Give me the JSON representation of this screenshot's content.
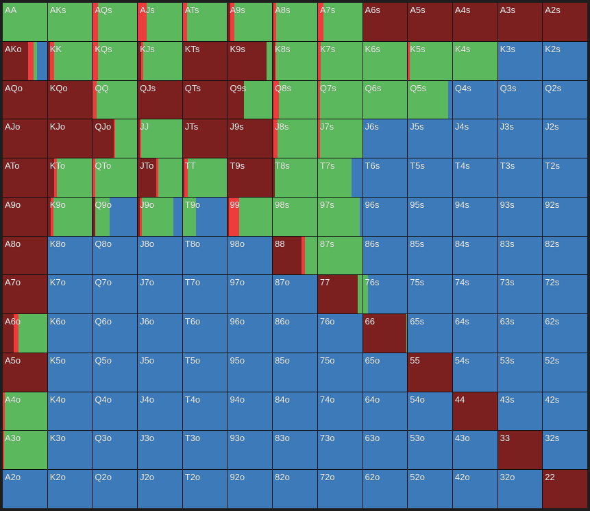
{
  "colors": {
    "raise": "#7b1f1f",
    "allin": "#ee3b3b",
    "call": "#5cb85c",
    "fold": "#3d7ab9"
  },
  "hands": [
    [
      "AA",
      "AKs",
      "AQs",
      "AJs",
      "ATs",
      "A9s",
      "A8s",
      "A7s",
      "A6s",
      "A5s",
      "A4s",
      "A3s",
      "A2s"
    ],
    [
      "AKo",
      "KK",
      "KQs",
      "KJs",
      "KTs",
      "K9s",
      "K8s",
      "K7s",
      "K6s",
      "K5s",
      "K4s",
      "K3s",
      "K2s"
    ],
    [
      "AQo",
      "KQo",
      "QQ",
      "QJs",
      "QTs",
      "Q9s",
      "Q8s",
      "Q7s",
      "Q6s",
      "Q5s",
      "Q4s",
      "Q3s",
      "Q2s"
    ],
    [
      "AJo",
      "KJo",
      "QJo",
      "JJ",
      "JTs",
      "J9s",
      "J8s",
      "J7s",
      "J6s",
      "J5s",
      "J4s",
      "J3s",
      "J2s"
    ],
    [
      "ATo",
      "KTo",
      "QTo",
      "JTo",
      "TT",
      "T9s",
      "T8s",
      "T7s",
      "T6s",
      "T5s",
      "T4s",
      "T3s",
      "T2s"
    ],
    [
      "A9o",
      "K9o",
      "Q9o",
      "J9o",
      "T9o",
      "99",
      "98s",
      "97s",
      "96s",
      "95s",
      "94s",
      "93s",
      "92s"
    ],
    [
      "A8o",
      "K8o",
      "Q8o",
      "J8o",
      "T8o",
      "98o",
      "88",
      "87s",
      "86s",
      "85s",
      "84s",
      "83s",
      "82s"
    ],
    [
      "A7o",
      "K7o",
      "Q7o",
      "J7o",
      "T7o",
      "97o",
      "87o",
      "77",
      "76s",
      "75s",
      "74s",
      "73s",
      "72s"
    ],
    [
      "A6o",
      "K6o",
      "Q6o",
      "J6o",
      "T6o",
      "96o",
      "86o",
      "76o",
      "66",
      "65s",
      "64s",
      "63s",
      "62s"
    ],
    [
      "A5o",
      "K5o",
      "Q5o",
      "J5o",
      "T5o",
      "95o",
      "85o",
      "75o",
      "65o",
      "55",
      "54s",
      "53s",
      "52s"
    ],
    [
      "A4o",
      "K4o",
      "Q4o",
      "J4o",
      "T4o",
      "94o",
      "84o",
      "74o",
      "64o",
      "54o",
      "44",
      "43s",
      "42s"
    ],
    [
      "A3o",
      "K3o",
      "Q3o",
      "J3o",
      "T3o",
      "93o",
      "83o",
      "73o",
      "63o",
      "53o",
      "43o",
      "33",
      "32s"
    ],
    [
      "A2o",
      "K2o",
      "Q2o",
      "J2o",
      "T2o",
      "92o",
      "82o",
      "72o",
      "62o",
      "52o",
      "42o",
      "32o",
      "22"
    ]
  ],
  "frequencies": [
    [
      [
        0,
        0,
        1,
        0
      ],
      [
        0,
        0,
        1,
        0
      ],
      [
        0,
        0.12,
        0.88,
        0
      ],
      [
        0,
        0.2,
        0.8,
        0
      ],
      [
        0,
        0.1,
        0.9,
        0
      ],
      [
        0.06,
        0.08,
        0.86,
        0
      ],
      [
        0.02,
        0.05,
        0.93,
        0
      ],
      [
        0,
        0.12,
        0.88,
        0
      ],
      [
        1,
        0,
        0,
        0
      ],
      [
        1,
        0,
        0,
        0
      ],
      [
        1,
        0,
        0,
        0
      ],
      [
        1,
        0,
        0,
        0
      ],
      [
        1,
        0,
        0,
        0
      ]
    ],
    [
      [
        0.57,
        0.12,
        0.09,
        0.22
      ],
      [
        0.05,
        0.1,
        0.85,
        0
      ],
      [
        0,
        0.12,
        0.88,
        0
      ],
      [
        0.08,
        0.05,
        0.87,
        0
      ],
      [
        1,
        0,
        0,
        0
      ],
      [
        0.87,
        0,
        0.13,
        0
      ],
      [
        0.05,
        0.02,
        0.93,
        0
      ],
      [
        0,
        0.07,
        0.93,
        0
      ],
      [
        0,
        0,
        1,
        0
      ],
      [
        0,
        0.05,
        0.95,
        0
      ],
      [
        0,
        0,
        1,
        0
      ],
      [
        0,
        0,
        0,
        1
      ],
      [
        0,
        0,
        0,
        1
      ]
    ],
    [
      [
        1,
        0,
        0,
        0
      ],
      [
        1,
        0,
        0,
        0
      ],
      [
        0,
        0.08,
        0.92,
        0
      ],
      [
        1,
        0,
        0,
        0
      ],
      [
        1,
        0,
        0,
        0
      ],
      [
        0.36,
        0,
        0.64,
        0
      ],
      [
        0.02,
        0.12,
        0.86,
        0
      ],
      [
        0,
        0.05,
        0.95,
        0
      ],
      [
        0,
        0,
        1,
        0
      ],
      [
        0,
        0,
        0.91,
        0.09
      ],
      [
        0,
        0,
        0,
        1
      ],
      [
        0,
        0,
        0,
        1
      ],
      [
        0,
        0,
        0,
        1
      ]
    ],
    [
      [
        1,
        0,
        0,
        0
      ],
      [
        1,
        0,
        0,
        0
      ],
      [
        0.48,
        0.02,
        0.5,
        0
      ],
      [
        0.05,
        0.03,
        0.92,
        0
      ],
      [
        1,
        0,
        0,
        0
      ],
      [
        1,
        0,
        0,
        0
      ],
      [
        0.02,
        0.09,
        0.89,
        0
      ],
      [
        0,
        0.05,
        0.95,
        0
      ],
      [
        0,
        0,
        0,
        1
      ],
      [
        0,
        0,
        0,
        1
      ],
      [
        0,
        0,
        0,
        1
      ],
      [
        0,
        0,
        0,
        1
      ],
      [
        0,
        0,
        0,
        1
      ]
    ],
    [
      [
        1,
        0,
        0,
        0
      ],
      [
        0.15,
        0.05,
        0.8,
        0
      ],
      [
        0,
        0.06,
        0.94,
        0
      ],
      [
        0.42,
        0.05,
        0.53,
        0
      ],
      [
        0.03,
        0.08,
        0.89,
        0
      ],
      [
        1,
        0,
        0,
        0
      ],
      [
        0.04,
        0,
        0.96,
        0
      ],
      [
        0,
        0,
        0.76,
        0.24
      ],
      [
        0,
        0,
        0,
        1
      ],
      [
        0,
        0,
        0,
        1
      ],
      [
        0,
        0,
        0,
        1
      ],
      [
        0,
        0,
        0,
        1
      ],
      [
        0,
        0,
        0,
        1
      ]
    ],
    [
      [
        1,
        0,
        0,
        0
      ],
      [
        0.06,
        0.07,
        0.87,
        0
      ],
      [
        0.05,
        0,
        0.33,
        0.62
      ],
      [
        0.04,
        0.05,
        0.71,
        0.2
      ],
      [
        0,
        0,
        0.29,
        0.71
      ],
      [
        0.03,
        0.23,
        0.74,
        0
      ],
      [
        0,
        0,
        1,
        0
      ],
      [
        0,
        0,
        0.95,
        0.05
      ],
      [
        0,
        0,
        0,
        1
      ],
      [
        0,
        0,
        0,
        1
      ],
      [
        0,
        0,
        0,
        1
      ],
      [
        0,
        0,
        0,
        1
      ],
      [
        0,
        0,
        0,
        1
      ]
    ],
    [
      [
        1,
        0,
        0,
        0
      ],
      [
        0,
        0,
        0,
        1
      ],
      [
        0,
        0,
        0,
        1
      ],
      [
        0,
        0,
        0,
        1
      ],
      [
        0,
        0,
        0,
        1
      ],
      [
        0,
        0,
        0,
        1
      ],
      [
        0.65,
        0.08,
        0.27,
        0
      ],
      [
        0,
        0,
        1,
        0
      ],
      [
        0,
        0,
        0,
        1
      ],
      [
        0,
        0,
        0,
        1
      ],
      [
        0,
        0,
        0,
        1
      ],
      [
        0,
        0,
        0,
        1
      ],
      [
        0,
        0,
        0,
        1
      ]
    ],
    [
      [
        1,
        0,
        0,
        0
      ],
      [
        0,
        0,
        0,
        1
      ],
      [
        0,
        0,
        0,
        1
      ],
      [
        0,
        0,
        0,
        1
      ],
      [
        0,
        0,
        0,
        1
      ],
      [
        0,
        0,
        0,
        1
      ],
      [
        0,
        0,
        0,
        1
      ],
      [
        0.9,
        0,
        0.1,
        0
      ],
      [
        0,
        0,
        0.12,
        0.88
      ],
      [
        0,
        0,
        0,
        1
      ],
      [
        0,
        0,
        0,
        1
      ],
      [
        0,
        0,
        0,
        1
      ],
      [
        0,
        0,
        0,
        1
      ]
    ],
    [
      [
        0.25,
        0.1,
        0.65,
        0
      ],
      [
        0,
        0,
        0,
        1
      ],
      [
        0,
        0,
        0,
        1
      ],
      [
        0,
        0,
        0,
        1
      ],
      [
        0,
        0,
        0,
        1
      ],
      [
        0,
        0,
        0,
        1
      ],
      [
        0,
        0,
        0,
        1
      ],
      [
        0,
        0,
        0,
        1
      ],
      [
        0.98,
        0,
        0.02,
        0
      ],
      [
        0,
        0,
        0,
        1
      ],
      [
        0,
        0,
        0,
        1
      ],
      [
        0,
        0,
        0,
        1
      ],
      [
        0,
        0,
        0,
        1
      ]
    ],
    [
      [
        1,
        0,
        0,
        0
      ],
      [
        0,
        0,
        0,
        1
      ],
      [
        0,
        0,
        0,
        1
      ],
      [
        0,
        0,
        0,
        1
      ],
      [
        0,
        0,
        0,
        1
      ],
      [
        0,
        0,
        0,
        1
      ],
      [
        0,
        0,
        0,
        1
      ],
      [
        0,
        0,
        0,
        1
      ],
      [
        0,
        0,
        0,
        1
      ],
      [
        1,
        0,
        0,
        0
      ],
      [
        0,
        0,
        0,
        1
      ],
      [
        0,
        0,
        0,
        1
      ],
      [
        0,
        0,
        0,
        1
      ]
    ],
    [
      [
        0,
        0.05,
        0.95,
        0
      ],
      [
        0,
        0,
        0,
        1
      ],
      [
        0,
        0,
        0,
        1
      ],
      [
        0,
        0,
        0,
        1
      ],
      [
        0,
        0,
        0,
        1
      ],
      [
        0,
        0,
        0,
        1
      ],
      [
        0,
        0,
        0,
        1
      ],
      [
        0,
        0,
        0,
        1
      ],
      [
        0,
        0,
        0,
        1
      ],
      [
        0,
        0,
        0,
        1
      ],
      [
        1,
        0,
        0,
        0
      ],
      [
        0,
        0,
        0,
        1
      ],
      [
        0,
        0,
        0,
        1
      ]
    ],
    [
      [
        0,
        0.03,
        0.97,
        0
      ],
      [
        0,
        0,
        0,
        1
      ],
      [
        0,
        0,
        0,
        1
      ],
      [
        0,
        0,
        0,
        1
      ],
      [
        0,
        0,
        0,
        1
      ],
      [
        0,
        0,
        0,
        1
      ],
      [
        0,
        0,
        0,
        1
      ],
      [
        0,
        0,
        0,
        1
      ],
      [
        0,
        0,
        0,
        1
      ],
      [
        0,
        0,
        0,
        1
      ],
      [
        0,
        0,
        0,
        1
      ],
      [
        1,
        0,
        0,
        0
      ],
      [
        0,
        0,
        0,
        1
      ]
    ],
    [
      [
        0,
        0,
        0,
        1
      ],
      [
        0,
        0,
        0,
        1
      ],
      [
        0,
        0,
        0,
        1
      ],
      [
        0,
        0,
        0,
        1
      ],
      [
        0,
        0,
        0,
        1
      ],
      [
        0,
        0,
        0,
        1
      ],
      [
        0,
        0,
        0,
        1
      ],
      [
        0,
        0,
        0,
        1
      ],
      [
        0,
        0,
        0,
        1
      ],
      [
        0,
        0,
        0,
        1
      ],
      [
        0,
        0,
        0,
        1
      ],
      [
        0,
        0,
        0,
        1
      ],
      [
        1,
        0,
        0,
        0
      ]
    ]
  ]
}
